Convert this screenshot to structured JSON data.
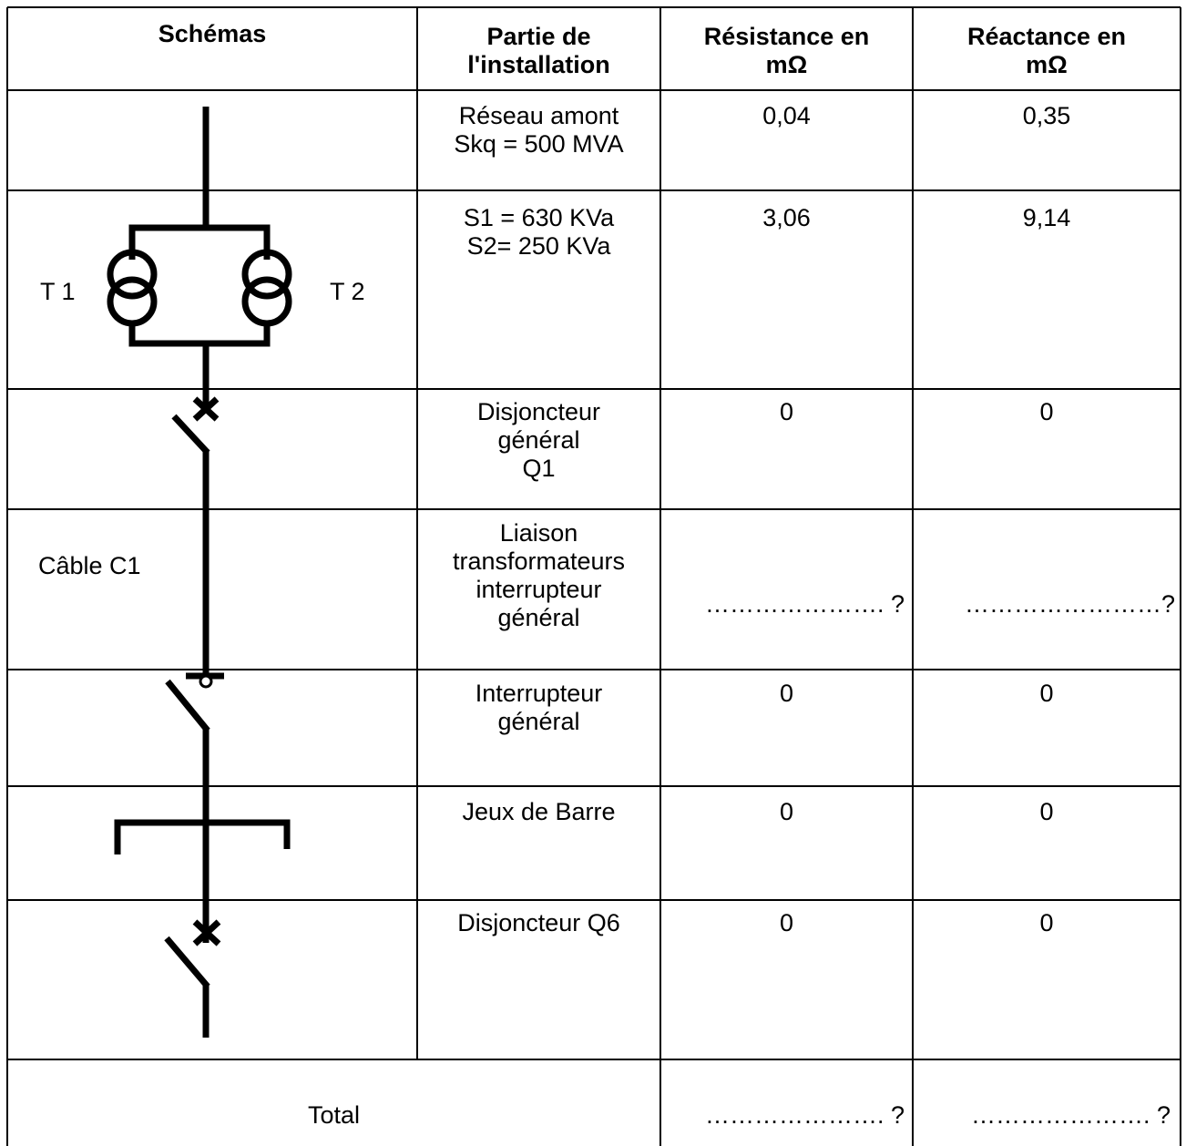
{
  "headers": {
    "schemas": "Schémas",
    "partie": "Partie de\nl'installation",
    "resistance": "Résistance en\nmΩ",
    "reactance": "Réactance en\nmΩ"
  },
  "rows": [
    {
      "partie": "Réseau amont\nSkq = 500 MVA",
      "resistance": "0,04",
      "reactance": "0,35"
    },
    {
      "partie": "S1 = 630 KVa\nS2= 250 KVa",
      "resistance": "3,06",
      "reactance": "9,14"
    },
    {
      "partie": "Disjoncteur\ngénéral\nQ1",
      "resistance": "0",
      "reactance": "0"
    },
    {
      "partie": "Liaison\ntransformateurs\ninterrupteur\ngénéral",
      "resistance": "…………………. ?",
      "reactance": "……………………?"
    },
    {
      "partie": "Interrupteur\ngénéral",
      "resistance": "0",
      "reactance": "0"
    },
    {
      "partie": "Jeux de Barre",
      "resistance": "0",
      "reactance": "0"
    },
    {
      "partie": "Disjoncteur Q6",
      "resistance": "0",
      "reactance": "0"
    }
  ],
  "total": {
    "label": "Total",
    "resistance": "…………………. ?",
    "reactance": "…………………. ?"
  },
  "schema_labels": {
    "t1": "T 1",
    "t2": "T 2",
    "cable": "Câble C1"
  }
}
